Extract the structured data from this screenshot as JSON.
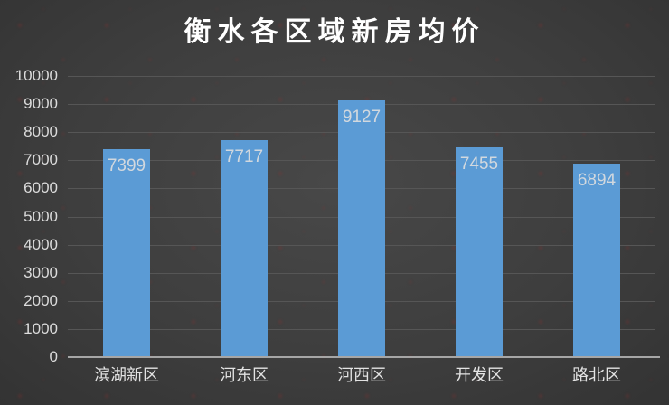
{
  "chart_data": {
    "type": "bar",
    "title": "衡水各区域新房均价",
    "categories": [
      "滨湖新区",
      "河东区",
      "河西区",
      "开发区",
      "路北区"
    ],
    "values": [
      7399,
      7717,
      9127,
      7455,
      6894
    ],
    "bar_labels": [
      "7399",
      "7717",
      "9127",
      "7455",
      "6894"
    ],
    "xlabel": "",
    "ylabel": "",
    "ylim": [
      0,
      10000
    ],
    "ytick_step": 1000,
    "ytick_labels": [
      "0",
      "1000",
      "2000",
      "3000",
      "4000",
      "5000",
      "6000",
      "7000",
      "8000",
      "9000",
      "10000"
    ],
    "grid": true,
    "legend": "none",
    "colors": {
      "bar": "#5B9BD5",
      "background": "#3E3E3E",
      "title_text": "#FFFFFF",
      "axis_text": "#DCDCDC",
      "bar_label_text": "#D2D8DE",
      "gridline": "#565656",
      "axis_line": "#A6A6A6",
      "watermark": "#9B2D2D"
    }
  }
}
